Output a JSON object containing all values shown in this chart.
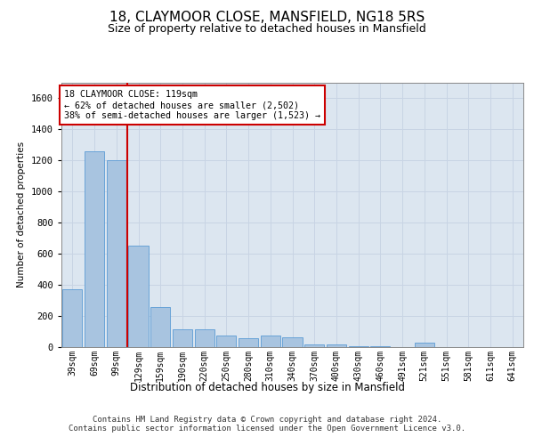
{
  "title": "18, CLAYMOOR CLOSE, MANSFIELD, NG18 5RS",
  "subtitle": "Size of property relative to detached houses in Mansfield",
  "xlabel": "Distribution of detached houses by size in Mansfield",
  "ylabel": "Number of detached properties",
  "categories": [
    "39sqm",
    "69sqm",
    "99sqm",
    "129sqm",
    "159sqm",
    "190sqm",
    "220sqm",
    "250sqm",
    "280sqm",
    "310sqm",
    "340sqm",
    "370sqm",
    "400sqm",
    "430sqm",
    "460sqm",
    "491sqm",
    "521sqm",
    "551sqm",
    "581sqm",
    "611sqm",
    "641sqm"
  ],
  "values": [
    370,
    1260,
    1200,
    650,
    260,
    115,
    115,
    75,
    55,
    75,
    65,
    20,
    20,
    5,
    5,
    0,
    30,
    0,
    0,
    0,
    0
  ],
  "bar_color": "#a8c4e0",
  "bar_edge_color": "#5b9bd5",
  "annotation_line1": "18 CLAYMOOR CLOSE: 119sqm",
  "annotation_line2": "← 62% of detached houses are smaller (2,502)",
  "annotation_line3": "38% of semi-detached houses are larger (1,523) →",
  "annotation_box_color": "#ffffff",
  "annotation_border_color": "#cc0000",
  "red_line_color": "#cc0000",
  "grid_color": "#c8d4e4",
  "bg_color": "#dce6f0",
  "ylim": [
    0,
    1700
  ],
  "yticks": [
    0,
    200,
    400,
    600,
    800,
    1000,
    1200,
    1400,
    1600
  ],
  "footer1": "Contains HM Land Registry data © Crown copyright and database right 2024.",
  "footer2": "Contains public sector information licensed under the Open Government Licence v3.0."
}
